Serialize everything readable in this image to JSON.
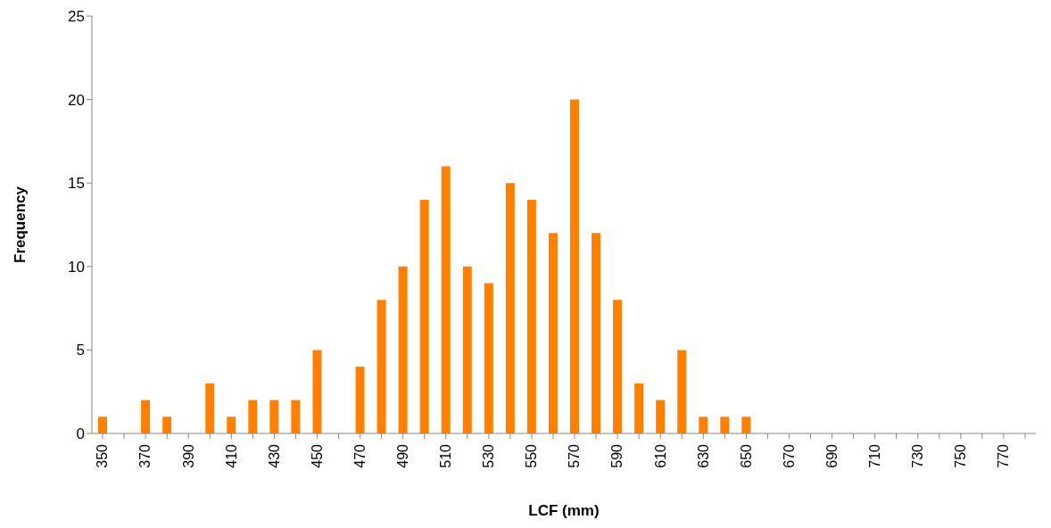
{
  "chart_data": {
    "type": "bar",
    "xlabel": "LCF (mm)",
    "ylabel": "Frequency",
    "categories": [
      "350",
      null,
      "370",
      null,
      "390",
      null,
      "410",
      null,
      "430",
      null,
      "450",
      null,
      "470",
      null,
      "490",
      null,
      "510",
      null,
      "530",
      null,
      "550",
      null,
      "570",
      null,
      "590",
      null,
      "610",
      null,
      "630",
      null,
      "650",
      null,
      "670",
      null,
      "690",
      null,
      "710",
      null,
      "730",
      null,
      "750",
      null,
      "770",
      null
    ],
    "values": [
      1,
      0,
      2,
      1,
      0,
      3,
      1,
      2,
      2,
      2,
      5,
      0,
      4,
      8,
      10,
      14,
      16,
      10,
      9,
      15,
      14,
      12,
      20,
      12,
      8,
      3,
      2,
      5,
      1,
      1,
      1,
      0,
      0,
      0,
      0,
      0,
      0,
      0,
      0,
      0,
      0,
      0,
      0,
      0
    ],
    "color": "#ff8000",
    "ylim": [
      0,
      25
    ],
    "yticks": [
      0,
      5,
      10,
      15,
      20,
      25
    ],
    "grid": false,
    "legend": false
  }
}
